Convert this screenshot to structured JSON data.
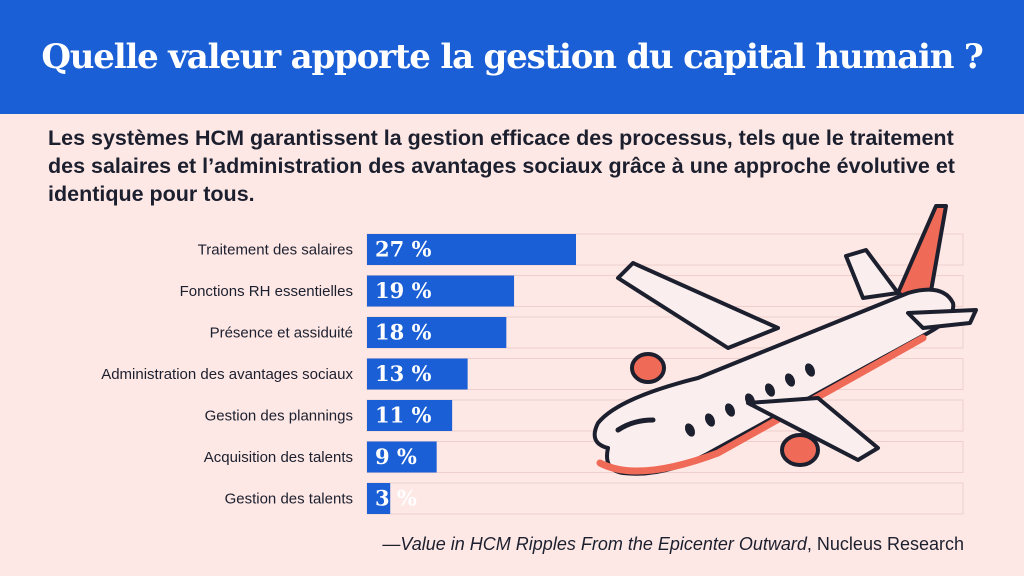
{
  "title": "Quelle valeur apporte la gestion du capital humain ?",
  "subtitle": "Les systèmes HCM garantissent la gestion efficace des processus, tels que le traitement des salaires et l’administration des avantages sociaux grâce à une approche évolutive et identique pour tous.",
  "source": {
    "dash": "—",
    "title": "Value in HCM Ripples From the Epicenter Outward",
    "publisher": ", Nucleus Research"
  },
  "colors": {
    "header": "#1a5fd6",
    "bar": "#1a5fd6",
    "background": "#fde8e6",
    "accent": "#f06b57"
  },
  "illustration": "airplane",
  "chart_data": {
    "type": "bar",
    "orientation": "horizontal",
    "categories": [
      "Traitement des salaires",
      "Fonctions RH essentielles",
      "Présence et assiduité",
      "Administration des avantages sociaux",
      "Gestion des plannings",
      "Acquisition des talents",
      "Gestion des talents"
    ],
    "values": [
      27,
      19,
      18,
      13,
      11,
      9,
      3
    ],
    "value_labels": [
      "27 %",
      "19 %",
      "18 %",
      "13 %",
      "11 %",
      "9 %",
      "3 %"
    ],
    "xlim": [
      0,
      77
    ],
    "grid": false,
    "legend": "none"
  }
}
